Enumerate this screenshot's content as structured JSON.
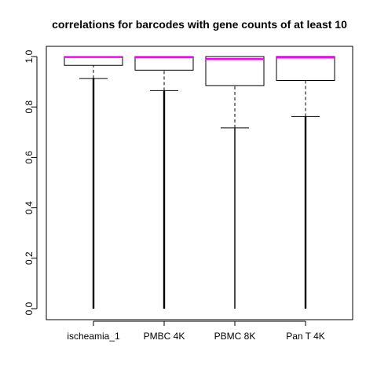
{
  "chart_data": {
    "type": "boxplot",
    "title": "correlations for barcodes with gene counts of at least 10",
    "xlabel": "",
    "ylabel": "",
    "ylim": [
      0,
      1
    ],
    "yticks": [
      0.0,
      0.2,
      0.4,
      0.6,
      0.8,
      1.0
    ],
    "ytick_labels": [
      "0.0",
      "0.2",
      "0.4",
      "0.6",
      "0.8",
      "1.0"
    ],
    "median_color": "#ff00ff",
    "categories": [
      "ischeamia_1",
      "PMBC 4K",
      "PBMC 8K",
      "Pan T 4K"
    ],
    "boxes": [
      {
        "name": "ischeamia_1",
        "whisker_low": 0.913,
        "q1": 0.965,
        "median": 0.998,
        "q3": 1.0,
        "whisker_high": 1.0,
        "outliers_min": 0.0,
        "outliers_max": 0.913
      },
      {
        "name": "PMBC 4K",
        "whisker_low": 0.865,
        "q1": 0.946,
        "median": 0.997,
        "q3": 1.0,
        "whisker_high": 1.0,
        "outliers_min": 0.0,
        "outliers_max": 0.865
      },
      {
        "name": "PBMC 8K",
        "whisker_low": 0.717,
        "q1": 0.885,
        "median": 0.99,
        "q3": 1.0,
        "whisker_high": 1.0,
        "outliers_min": 0.0,
        "outliers_max": 0.717
      },
      {
        "name": "Pan T 4K",
        "whisker_low": 0.762,
        "q1": 0.905,
        "median": 0.996,
        "q3": 1.0,
        "whisker_high": 1.0,
        "outliers_min": 0.0,
        "outliers_max": 0.762
      }
    ]
  }
}
